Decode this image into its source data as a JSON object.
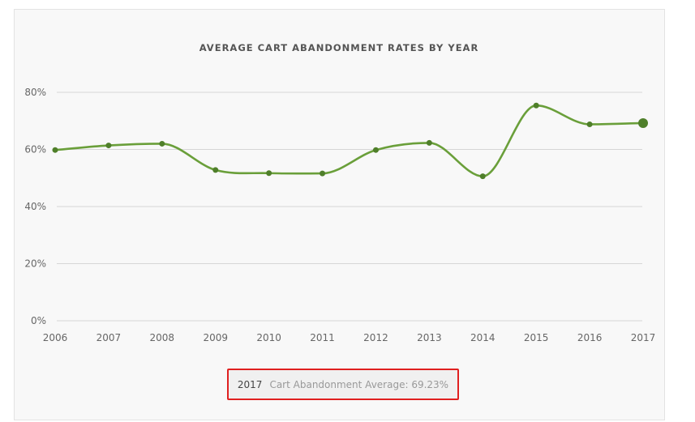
{
  "chart_data": {
    "type": "line",
    "title": "AVERAGE CART ABANDONMENT RATES BY YEAR",
    "xlabel": "",
    "ylabel": "",
    "x": [
      "2006",
      "2007",
      "2008",
      "2009",
      "2010",
      "2011",
      "2012",
      "2013",
      "2014",
      "2015",
      "2016",
      "2017"
    ],
    "series": [
      {
        "values": [
          59.8,
          61.4,
          62.0,
          52.8,
          51.7,
          51.6,
          59.8,
          62.3,
          50.6,
          75.4,
          68.8,
          69.23
        ]
      }
    ],
    "ylim": [
      0,
      80
    ],
    "yticks": [
      "0%",
      "20%",
      "40%",
      "60%",
      "80%"
    ],
    "ytick_values": [
      0,
      20,
      40,
      60,
      80
    ],
    "grid": true,
    "legend": "none",
    "highlighted_point": "2017",
    "colors": {
      "line": "#6a9f3a",
      "marker": "#4f7f2a",
      "grid": "#d6d6d6",
      "highlight_border": "#e02020"
    }
  },
  "tooltip": {
    "year": "2017",
    "label": "Cart Abandonment Average: 69.23%"
  }
}
